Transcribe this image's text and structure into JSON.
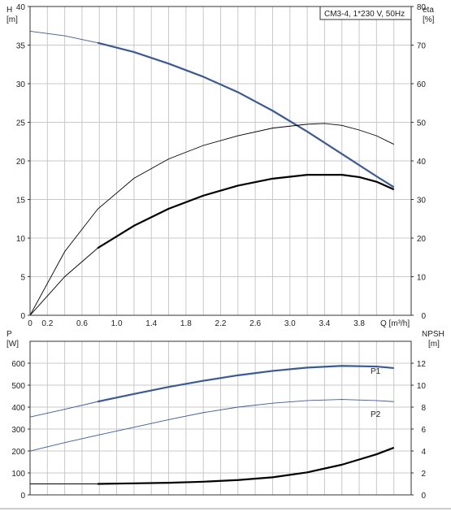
{
  "chart_data": [
    {
      "type": "line",
      "legend_label": "CM3-4, 1*230 V, 50Hz",
      "left_axis": {
        "label_top": "H",
        "label_unit": "[m]",
        "ylim": [
          0,
          40
        ],
        "ticks": [
          "0",
          "5",
          "10",
          "15",
          "20",
          "25",
          "30",
          "35",
          "40"
        ]
      },
      "right_axis": {
        "label_top": "eta",
        "label_unit": "[%]",
        "ylim": [
          0,
          80
        ],
        "ticks": [
          "0",
          "10",
          "20",
          "30",
          "40",
          "50",
          "60",
          "70",
          "80"
        ]
      },
      "x_axis": {
        "label": "Q [m³/h]",
        "xlim": [
          0,
          4.4
        ],
        "ticks": [
          "0",
          "0.2",
          "0.6",
          "1.0",
          "1.4",
          "1.8",
          "2.2",
          "2.6",
          "3.0",
          "3.4",
          "3.8"
        ],
        "tick_values": [
          0,
          0.2,
          0.6,
          1.0,
          1.4,
          1.8,
          2.2,
          2.6,
          3.0,
          3.4,
          3.8
        ]
      },
      "grid": true,
      "series": [
        {
          "axis": "left",
          "color": "#3b5a95",
          "thin_until": 0.78,
          "x": [
            0,
            0.4,
            0.78,
            1.2,
            1.6,
            2.0,
            2.4,
            2.8,
            3.2,
            3.6,
            4.0,
            4.2
          ],
          "y": [
            36.8,
            36.2,
            35.3,
            34.1,
            32.6,
            30.9,
            28.9,
            26.5,
            23.8,
            20.9,
            18.0,
            16.6
          ]
        },
        {
          "axis": "right",
          "color": "#000000",
          "thin_until": 4.2,
          "x": [
            0,
            0.4,
            0.78,
            1.2,
            1.6,
            2.0,
            2.4,
            2.8,
            3.2,
            3.4,
            3.6,
            3.8,
            4.0,
            4.2
          ],
          "y": [
            0,
            16.5,
            27.5,
            35.5,
            40.5,
            44.0,
            46.5,
            48.5,
            49.5,
            49.7,
            49.2,
            48.0,
            46.5,
            44.3
          ]
        },
        {
          "axis": "left",
          "color": "#000000",
          "thin_until": 0.78,
          "x": [
            0,
            0.4,
            0.78,
            1.2,
            1.6,
            2.0,
            2.4,
            2.8,
            3.2,
            3.6,
            3.8,
            4.0,
            4.2
          ],
          "y": [
            0,
            5.0,
            8.7,
            11.6,
            13.8,
            15.5,
            16.8,
            17.7,
            18.2,
            18.2,
            17.9,
            17.3,
            16.3
          ]
        }
      ]
    },
    {
      "type": "line",
      "left_axis": {
        "label_top": "P",
        "label_unit": "[W]",
        "ylim": [
          0,
          700
        ],
        "ticks": [
          "0",
          "100",
          "200",
          "300",
          "400",
          "500",
          "600"
        ]
      },
      "right_axis": {
        "label_top": "NPSH",
        "label_unit": "[m]",
        "ylim": [
          0,
          14
        ],
        "ticks": [
          "0",
          "2",
          "4",
          "6",
          "8",
          "10",
          "12"
        ]
      },
      "xlim": [
        0,
        4.4
      ],
      "grid": true,
      "series": [
        {
          "name": "P1",
          "axis": "left",
          "color": "#3b5a95",
          "thin_until": 0.78,
          "x": [
            0,
            0.4,
            0.78,
            1.2,
            1.6,
            2.0,
            2.4,
            2.8,
            3.2,
            3.6,
            4.0,
            4.2
          ],
          "y": [
            355,
            390,
            425,
            460,
            492,
            520,
            545,
            565,
            580,
            588,
            585,
            578
          ]
        },
        {
          "name": "P2",
          "axis": "left",
          "color": "#3b5a95",
          "thin_until": 4.2,
          "x": [
            0,
            0.4,
            0.78,
            1.2,
            1.6,
            2.0,
            2.4,
            2.8,
            3.2,
            3.6,
            4.0,
            4.2
          ],
          "y": [
            200,
            238,
            272,
            308,
            343,
            375,
            400,
            418,
            430,
            435,
            430,
            425
          ]
        },
        {
          "axis": "right",
          "color": "#000000",
          "thin_until": 0.78,
          "x": [
            0,
            0.4,
            0.78,
            1.2,
            1.6,
            2.0,
            2.4,
            2.8,
            3.2,
            3.6,
            4.0,
            4.2
          ],
          "y": [
            1.0,
            1.0,
            1.0,
            1.05,
            1.1,
            1.2,
            1.35,
            1.6,
            2.05,
            2.75,
            3.7,
            4.3
          ]
        }
      ]
    }
  ]
}
